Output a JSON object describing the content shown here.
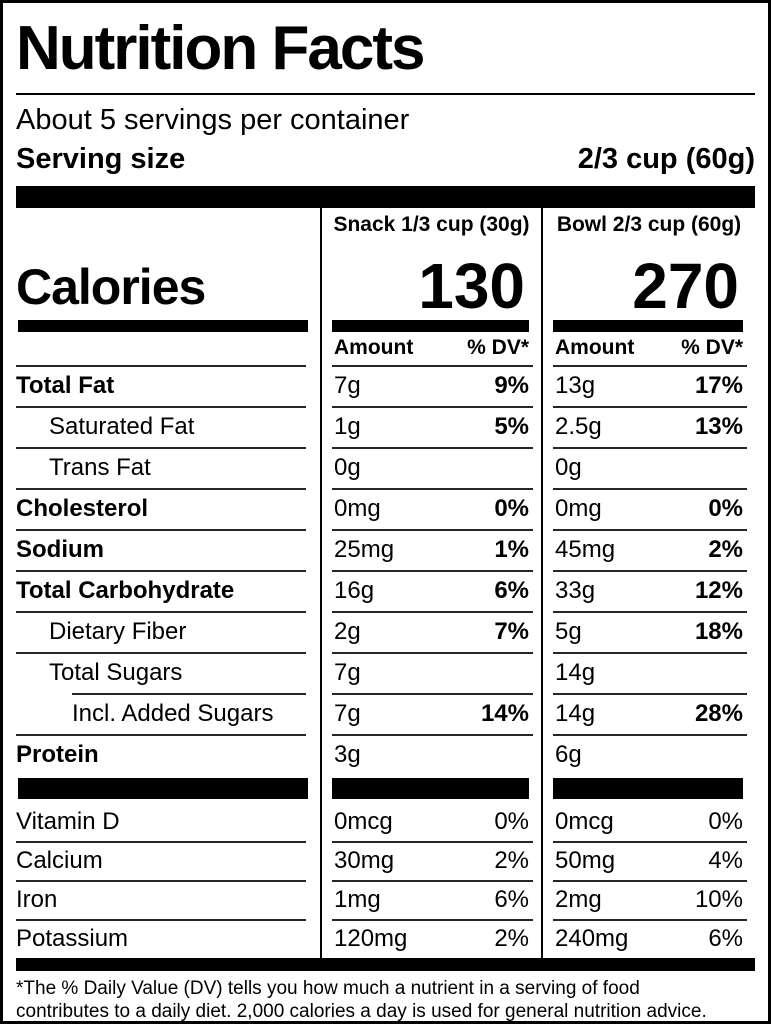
{
  "label": {
    "title": "Nutrition Facts",
    "servings_per_container": "About 5 servings per container",
    "serving_size_label": "Serving size",
    "serving_size_value": "2/3 cup (60g)"
  },
  "columns": {
    "snack_header": "Snack 1/3 cup (30g)",
    "bowl_header": "Bowl 2/3 cup (60g)",
    "amount_label": "Amount",
    "dv_label": "% DV*"
  },
  "calories": {
    "label": "Calories",
    "snack": "130",
    "bowl": "270"
  },
  "rows": [
    {
      "name": "Total Fat",
      "bold": true,
      "indent": 0,
      "sep": true,
      "sep_indent": false,
      "section": "main",
      "snack_amount": "7g",
      "snack_dv": "9%",
      "bowl_amount": "13g",
      "bowl_dv": "17%",
      "dv_bold": true
    },
    {
      "name": "Saturated Fat",
      "bold": false,
      "indent": 1,
      "sep": true,
      "sep_indent": false,
      "section": "main",
      "snack_amount": "1g",
      "snack_dv": "5%",
      "bowl_amount": "2.5g",
      "bowl_dv": "13%",
      "dv_bold": true
    },
    {
      "name": "Trans Fat",
      "bold": false,
      "indent": 1,
      "sep": true,
      "sep_indent": false,
      "section": "main",
      "snack_amount": "0g",
      "snack_dv": "",
      "bowl_amount": "0g",
      "bowl_dv": "",
      "dv_bold": true
    },
    {
      "name": "Cholesterol",
      "bold": true,
      "indent": 0,
      "sep": true,
      "sep_indent": false,
      "section": "main",
      "snack_amount": "0mg",
      "snack_dv": "0%",
      "bowl_amount": "0mg",
      "bowl_dv": "0%",
      "dv_bold": true
    },
    {
      "name": "Sodium",
      "bold": true,
      "indent": 0,
      "sep": true,
      "sep_indent": false,
      "section": "main",
      "snack_amount": "25mg",
      "snack_dv": "1%",
      "bowl_amount": "45mg",
      "bowl_dv": "2%",
      "dv_bold": true
    },
    {
      "name": "Total Carbohydrate",
      "bold": true,
      "indent": 0,
      "sep": true,
      "sep_indent": false,
      "section": "main",
      "snack_amount": "16g",
      "snack_dv": "6%",
      "bowl_amount": "33g",
      "bowl_dv": "12%",
      "dv_bold": true
    },
    {
      "name": "Dietary Fiber",
      "bold": false,
      "indent": 1,
      "sep": true,
      "sep_indent": false,
      "section": "main",
      "snack_amount": "2g",
      "snack_dv": "7%",
      "bowl_amount": "5g",
      "bowl_dv": "18%",
      "dv_bold": true
    },
    {
      "name": "Total Sugars",
      "bold": false,
      "indent": 1,
      "sep": true,
      "sep_indent": false,
      "section": "main",
      "snack_amount": "7g",
      "snack_dv": "",
      "bowl_amount": "14g",
      "bowl_dv": "",
      "dv_bold": true
    },
    {
      "name": "Incl. Added Sugars",
      "bold": false,
      "indent": 2,
      "sep": true,
      "sep_indent": true,
      "section": "main",
      "snack_amount": "7g",
      "snack_dv": "14%",
      "bowl_amount": "14g",
      "bowl_dv": "28%",
      "dv_bold": true
    },
    {
      "name": "Protein",
      "bold": true,
      "indent": 0,
      "sep": true,
      "sep_indent": false,
      "section": "main",
      "snack_amount": "3g",
      "snack_dv": "",
      "bowl_amount": "6g",
      "bowl_dv": "",
      "dv_bold": true
    },
    {
      "name": "Vitamin D",
      "bold": false,
      "indent": 0,
      "sep": false,
      "sep_indent": false,
      "section": "micros",
      "snack_amount": "0mcg",
      "snack_dv": "0%",
      "bowl_amount": "0mcg",
      "bowl_dv": "0%",
      "dv_bold": false
    },
    {
      "name": "Calcium",
      "bold": false,
      "indent": 0,
      "sep": true,
      "sep_indent": false,
      "section": "micros",
      "snack_amount": "30mg",
      "snack_dv": "2%",
      "bowl_amount": "50mg",
      "bowl_dv": "4%",
      "dv_bold": false
    },
    {
      "name": "Iron",
      "bold": false,
      "indent": 0,
      "sep": true,
      "sep_indent": false,
      "section": "micros",
      "snack_amount": "1mg",
      "snack_dv": "6%",
      "bowl_amount": "2mg",
      "bowl_dv": "10%",
      "dv_bold": false
    },
    {
      "name": "Potassium",
      "bold": false,
      "indent": 0,
      "sep": true,
      "sep_indent": false,
      "section": "micros",
      "snack_amount": "120mg",
      "snack_dv": "2%",
      "bowl_amount": "240mg",
      "bowl_dv": "6%",
      "dv_bold": false
    }
  ],
  "footnote": {
    "line1": "*The % Daily Value (DV) tells you how much a nutrient in a serving of food",
    "line2": "contributes to a daily diet. 2,000 calories a day is used for general nutrition advice."
  },
  "colors": {
    "ink": "#000000",
    "paper": "#ffffff"
  }
}
